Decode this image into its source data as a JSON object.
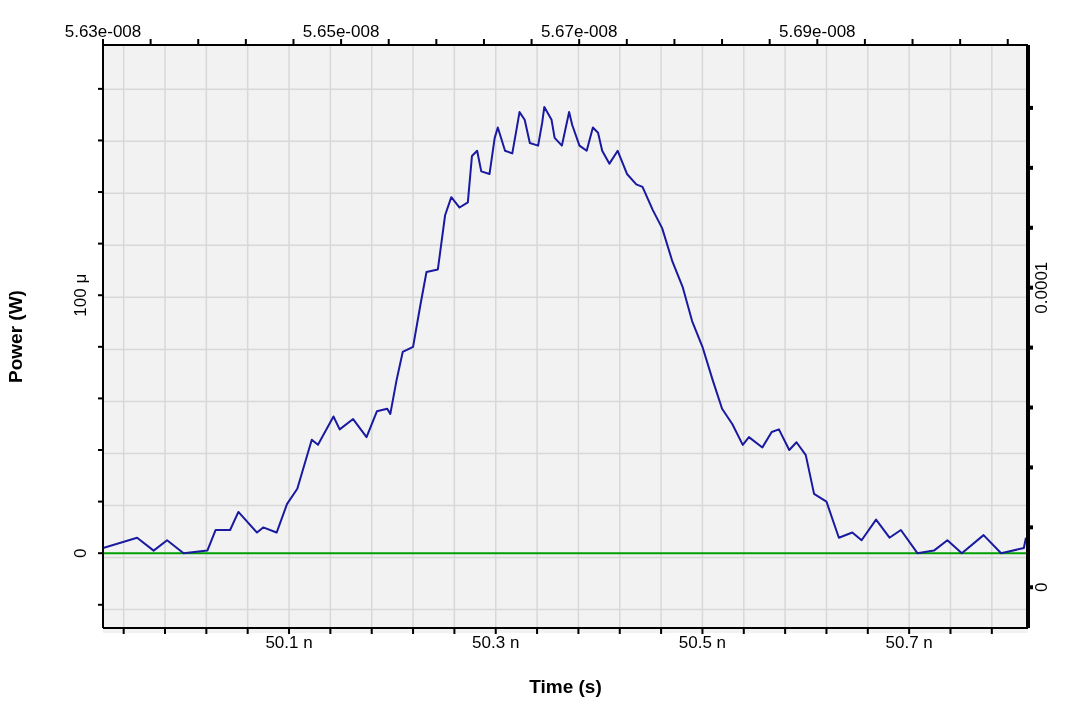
{
  "chart_data": {
    "type": "line",
    "xlabel": "Time (s)",
    "ylabel": "Power (W)",
    "xlim": [
      49.92,
      50.815
    ],
    "xticks": [
      {
        "value": 49.94,
        "label": null
      },
      {
        "value": 49.98,
        "label": null
      },
      {
        "value": 50.02,
        "label": null
      },
      {
        "value": 50.06,
        "label": null
      },
      {
        "value": 50.1,
        "label": "50.1 n"
      },
      {
        "value": 50.14,
        "label": null
      },
      {
        "value": 50.18,
        "label": null
      },
      {
        "value": 50.22,
        "label": null
      },
      {
        "value": 50.26,
        "label": null
      },
      {
        "value": 50.3,
        "label": "50.3 n"
      },
      {
        "value": 50.34,
        "label": null
      },
      {
        "value": 50.38,
        "label": null
      },
      {
        "value": 50.42,
        "label": null
      },
      {
        "value": 50.46,
        "label": null
      },
      {
        "value": 50.5,
        "label": "50.5 n"
      },
      {
        "value": 50.54,
        "label": null
      },
      {
        "value": 50.58,
        "label": null
      },
      {
        "value": 50.62,
        "label": null
      },
      {
        "value": 50.66,
        "label": null
      },
      {
        "value": 50.7,
        "label": "50.7 n"
      },
      {
        "value": 50.74,
        "label": null
      },
      {
        "value": 50.78,
        "label": null
      }
    ],
    "x2lim": [
      5.63e-08,
      5.7077e-08
    ],
    "x2ticks": [
      {
        "value": 5.63e-08,
        "label": "5.63e-008"
      },
      {
        "value": 5.634e-08,
        "label": null
      },
      {
        "value": 5.638e-08,
        "label": null
      },
      {
        "value": 5.642e-08,
        "label": null
      },
      {
        "value": 5.646e-08,
        "label": null
      },
      {
        "value": 5.65e-08,
        "label": "5.65e-008"
      },
      {
        "value": 5.654e-08,
        "label": null
      },
      {
        "value": 5.658e-08,
        "label": null
      },
      {
        "value": 5.662e-08,
        "label": null
      },
      {
        "value": 5.666e-08,
        "label": null
      },
      {
        "value": 5.67e-08,
        "label": "5.67e-008"
      },
      {
        "value": 5.674e-08,
        "label": null
      },
      {
        "value": 5.678e-08,
        "label": null
      },
      {
        "value": 5.682e-08,
        "label": null
      },
      {
        "value": 5.686e-08,
        "label": null
      },
      {
        "value": 5.69e-08,
        "label": "5.69e-008"
      },
      {
        "value": 5.694e-08,
        "label": null
      },
      {
        "value": 5.698e-08,
        "label": null
      },
      {
        "value": 5.702e-08,
        "label": null
      },
      {
        "value": 5.706e-08,
        "label": null
      }
    ],
    "ylim": [
      -29,
      197
    ],
    "yticks": [
      {
        "value": -20,
        "label": null
      },
      {
        "value": 0,
        "label": "0"
      },
      {
        "value": 20,
        "label": null
      },
      {
        "value": 40,
        "label": null
      },
      {
        "value": 60,
        "label": null
      },
      {
        "value": 80,
        "label": null
      },
      {
        "value": 100,
        "label": "100 μ"
      },
      {
        "value": 120,
        "label": null
      },
      {
        "value": 140,
        "label": null
      },
      {
        "value": 160,
        "label": null
      },
      {
        "value": 180,
        "label": null
      }
    ],
    "y2lim": [
      -1.36e-05,
      0.000181
    ],
    "y2ticks": [
      {
        "value": 0,
        "label": "0"
      },
      {
        "value": 2e-05,
        "label": null
      },
      {
        "value": 4e-05,
        "label": null
      },
      {
        "value": 6e-05,
        "label": null
      },
      {
        "value": 8e-05,
        "label": null
      },
      {
        "value": 0.0001,
        "label": "0.0001"
      },
      {
        "value": 0.00012,
        "label": null
      },
      {
        "value": 0.00014,
        "label": null
      },
      {
        "value": 0.00016,
        "label": null
      }
    ],
    "grid": true,
    "marker": "none",
    "line_style": "solid",
    "ref_lines": [
      {
        "axis": "y",
        "value": 0,
        "label": null,
        "color": "#00a000"
      }
    ],
    "series": [
      {
        "color": "#1a1aa0",
        "x": [
          49.92,
          49.953,
          49.969,
          49.982,
          49.998,
          50.021,
          50.029,
          50.043,
          50.051,
          50.069,
          50.075,
          50.088,
          50.098,
          50.108,
          50.122,
          50.128,
          50.143,
          50.149,
          50.162,
          50.175,
          50.185,
          50.195,
          50.198,
          50.204,
          50.21,
          50.22,
          50.227,
          50.233,
          50.244,
          50.251,
          50.257,
          50.265,
          50.273,
          50.277,
          50.282,
          50.286,
          50.294,
          50.299,
          50.302,
          50.309,
          50.316,
          50.32,
          50.323,
          50.328,
          50.333,
          50.341,
          50.345,
          50.347,
          50.354,
          50.357,
          50.364,
          50.371,
          50.374,
          50.381,
          50.388,
          50.394,
          50.399,
          50.403,
          50.41,
          50.418,
          50.427,
          50.436,
          50.442,
          50.452,
          50.461,
          50.471,
          50.481,
          50.49,
          50.5,
          50.51,
          50.519,
          50.529,
          50.539,
          50.545,
          50.558,
          50.567,
          50.574,
          50.584,
          50.591,
          50.6,
          50.608,
          50.62,
          50.632,
          50.645,
          50.654,
          50.668,
          50.681,
          50.692,
          50.708,
          50.724,
          50.737,
          50.751,
          50.772,
          50.789,
          50.811,
          50.813
        ],
        "values": [
          2,
          6,
          1,
          5,
          0,
          1,
          9,
          9,
          16,
          8,
          10,
          8,
          19,
          25,
          44,
          42,
          53,
          48,
          52,
          45,
          55,
          56,
          54,
          67,
          78,
          80,
          96,
          109,
          110,
          131,
          138,
          134,
          136,
          154,
          156,
          148,
          147,
          161,
          165,
          156,
          155,
          164,
          171,
          168,
          159,
          158,
          167,
          173,
          168,
          161,
          158,
          171,
          166,
          158,
          156,
          165,
          163,
          156,
          151,
          156,
          147,
          143,
          142,
          133,
          126,
          113,
          103,
          90,
          80,
          67,
          56,
          50,
          42,
          45,
          41,
          47,
          48,
          40,
          43,
          38,
          23,
          20,
          6,
          8,
          5,
          13,
          6,
          9,
          0,
          1,
          5,
          0,
          7,
          0,
          2,
          6
        ]
      }
    ]
  }
}
